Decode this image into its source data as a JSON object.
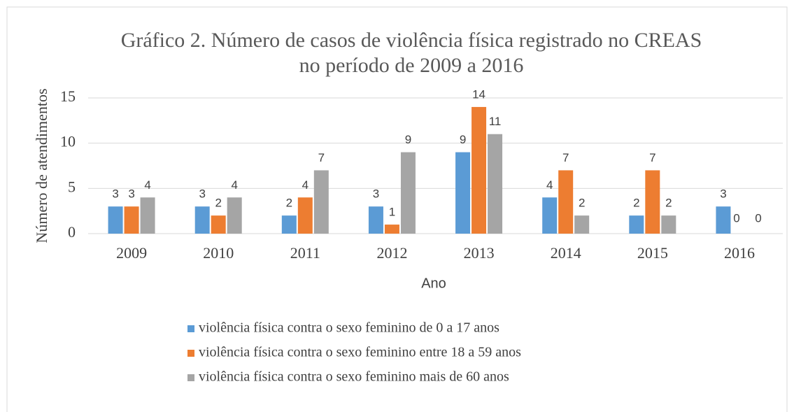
{
  "chart_data": {
    "type": "bar",
    "title": [
      "Gráfico 2. Número de casos de violência física registrado no CREAS",
      "no período de 2009 a 2016"
    ],
    "x_label": "Ano",
    "y_label": "Número de atendimentos",
    "categories": [
      "2009",
      "2010",
      "2011",
      "2012",
      "2013",
      "2014",
      "2015",
      "2016"
    ],
    "series": [
      {
        "name": "violência física contra o sexo feminino de 0 a 17 anos",
        "color": "#5b9bd5",
        "values": [
          3,
          3,
          2,
          3,
          9,
          4,
          2,
          3
        ]
      },
      {
        "name": "violência física contra o sexo feminino entre 18 a 59 anos",
        "color": "#ed7d31",
        "values": [
          3,
          2,
          4,
          1,
          14,
          7,
          7,
          0
        ]
      },
      {
        "name": "violência física contra o sexo feminino mais de 60 anos",
        "color": "#a5a5a5",
        "values": [
          4,
          4,
          7,
          9,
          11,
          2,
          2,
          0
        ]
      }
    ],
    "ylim": [
      0,
      15
    ],
    "yticks": [
      0,
      5,
      10,
      15
    ],
    "grid": true,
    "legend": "bottom"
  }
}
